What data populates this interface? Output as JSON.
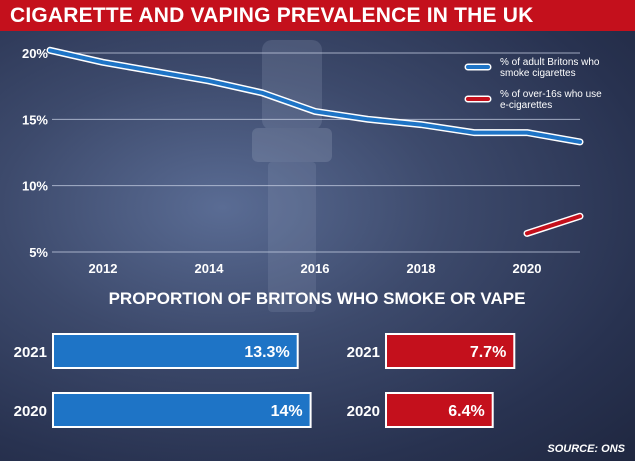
{
  "title": "CIGARETTE AND VAPING PREVALENCE IN THE UK",
  "source": "SOURCE: ONS",
  "colors": {
    "banner": "#c4101c",
    "smoke": "#1e74c6",
    "vape": "#c4101c"
  },
  "chart_data": [
    {
      "type": "line",
      "title": "",
      "xlabel": "",
      "ylabel": "",
      "xlim": [
        2011,
        2021
      ],
      "ylim": [
        5,
        20
      ],
      "x_ticks": [
        2012,
        2014,
        2016,
        2018,
        2020
      ],
      "y_ticks": [
        5,
        10,
        15,
        20
      ],
      "y_tick_labels": [
        "5%",
        "10%",
        "15%",
        "20%"
      ],
      "grid": true,
      "legend": "right",
      "series": [
        {
          "name": "% of adult Britons who smoke cigarettes",
          "color": "#1e74c6",
          "x": [
            2011,
            2012,
            2013,
            2014,
            2015,
            2016,
            2017,
            2018,
            2019,
            2020,
            2021
          ],
          "y": [
            20.2,
            19.3,
            18.6,
            17.9,
            17.0,
            15.6,
            15.0,
            14.6,
            14.0,
            14.0,
            13.3
          ]
        },
        {
          "name": "% of over-16s who use e-cigarettes",
          "color": "#c4101c",
          "x": [
            2020,
            2021
          ],
          "y": [
            6.4,
            7.7
          ]
        }
      ]
    },
    {
      "type": "bar",
      "orientation": "horizontal",
      "title": "PROPORTION OF BRITONS WHO SMOKE OR VAPE",
      "groups": [
        {
          "color": "#1e74c6",
          "categories": [
            "2021",
            "2020"
          ],
          "values": [
            13.3,
            14
          ],
          "labels": [
            "13.3%",
            "14%"
          ]
        },
        {
          "color": "#c4101c",
          "categories": [
            "2021",
            "2020"
          ],
          "values": [
            7.7,
            6.4
          ],
          "labels": [
            "7.7%",
            "6.4%"
          ]
        }
      ]
    }
  ]
}
